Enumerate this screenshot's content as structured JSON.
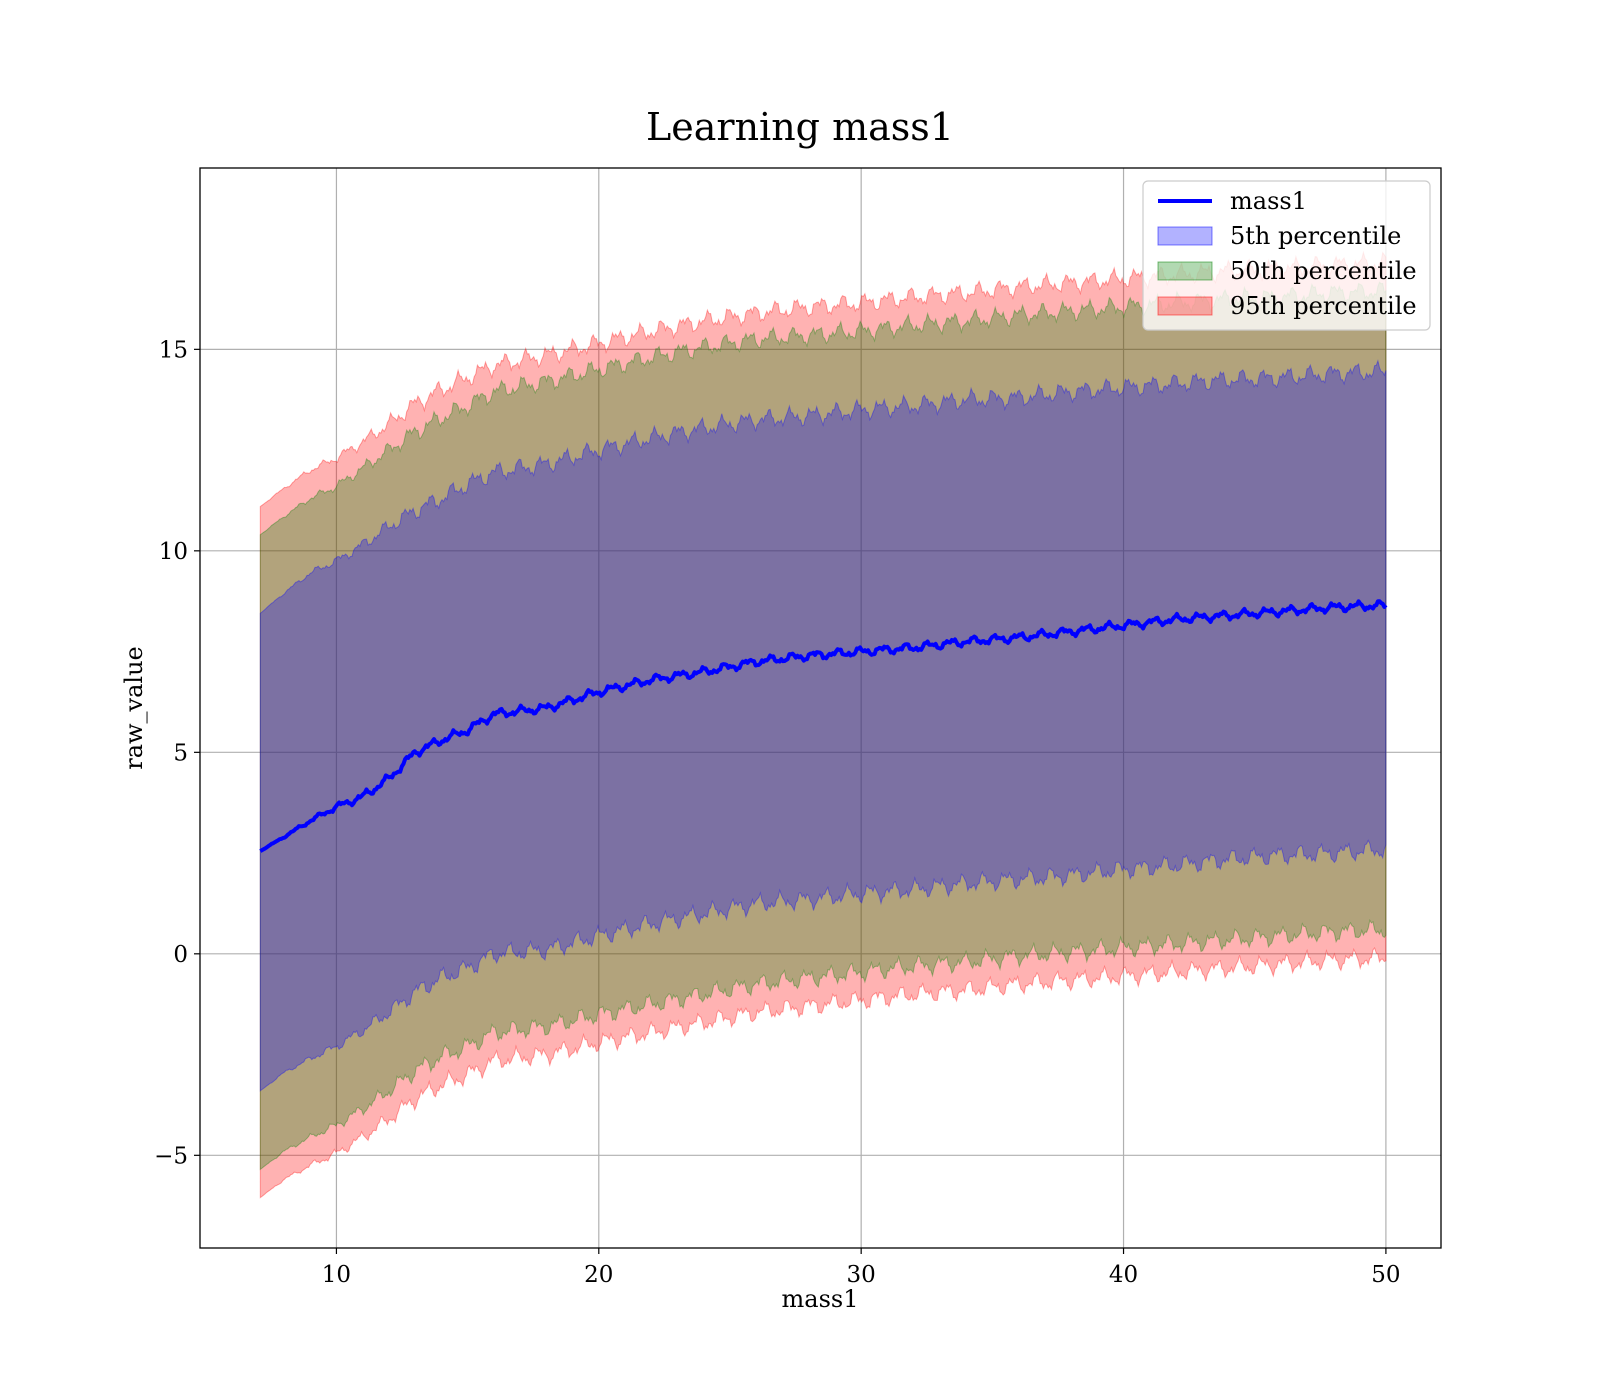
{
  "chart_data": {
    "type": "area",
    "title": "Learning mass1",
    "xlabel": "mass1",
    "ylabel": "raw_value",
    "xlim": [
      4.8,
      52.1
    ],
    "ylim": [
      -7.3,
      19.5
    ],
    "x_ticks": [
      10,
      20,
      30,
      40,
      50
    ],
    "x_tick_labels": [
      "10",
      "20",
      "30",
      "40",
      "50"
    ],
    "y_ticks": [
      -5,
      0,
      5,
      10,
      15
    ],
    "y_tick_labels": [
      "−5",
      "0",
      "5",
      "10",
      "15"
    ],
    "grid": true,
    "legend_position": "top-right",
    "x": [
      7.1,
      8,
      9,
      10,
      11,
      12,
      13,
      14,
      15,
      16,
      18,
      20,
      22,
      24,
      26,
      28,
      30,
      32,
      34,
      36,
      38,
      40,
      42,
      44,
      46,
      48,
      50
    ],
    "series": [
      {
        "name": "mass1",
        "kind": "line",
        "color": "#0000ff",
        "values": [
          2.55,
          2.9,
          3.3,
          3.65,
          3.9,
          4.35,
          5.0,
          5.3,
          5.55,
          5.95,
          6.1,
          6.5,
          6.8,
          7.0,
          7.25,
          7.4,
          7.5,
          7.6,
          7.75,
          7.85,
          8.0,
          8.15,
          8.3,
          8.4,
          8.5,
          8.6,
          8.65
        ]
      },
      {
        "name": "5th percentile",
        "kind": "band",
        "color": "#0000ff",
        "opacity": 0.3,
        "upper": [
          8.45,
          8.95,
          9.45,
          9.75,
          10.15,
          10.6,
          11.0,
          11.3,
          11.65,
          11.95,
          12.15,
          12.5,
          12.8,
          13.05,
          13.25,
          13.35,
          13.5,
          13.6,
          13.75,
          13.8,
          13.95,
          14.05,
          14.15,
          14.25,
          14.3,
          14.4,
          14.45
        ],
        "lower": [
          -3.4,
          -2.95,
          -2.6,
          -2.3,
          -1.9,
          -1.45,
          -0.95,
          -0.6,
          -0.35,
          0.0,
          0.1,
          0.45,
          0.75,
          1.0,
          1.25,
          1.35,
          1.5,
          1.6,
          1.75,
          1.85,
          1.95,
          2.1,
          2.2,
          2.35,
          2.45,
          2.5,
          2.6
        ]
      },
      {
        "name": "50th percentile",
        "kind": "band",
        "color": "#008000",
        "opacity": 0.3,
        "upper": [
          10.4,
          10.85,
          11.3,
          11.6,
          12.05,
          12.5,
          12.95,
          13.3,
          13.6,
          13.95,
          14.2,
          14.5,
          14.8,
          15.05,
          15.25,
          15.35,
          15.45,
          15.6,
          15.7,
          15.85,
          15.95,
          16.05,
          16.15,
          16.25,
          16.3,
          16.4,
          16.45
        ],
        "lower": [
          -5.35,
          -4.9,
          -4.55,
          -4.25,
          -3.85,
          -3.4,
          -2.9,
          -2.55,
          -2.3,
          -1.95,
          -1.8,
          -1.5,
          -1.25,
          -1.0,
          -0.75,
          -0.6,
          -0.45,
          -0.3,
          -0.2,
          -0.05,
          0.05,
          0.15,
          0.25,
          0.35,
          0.45,
          0.55,
          0.6
        ]
      },
      {
        "name": "95th percentile",
        "kind": "band",
        "color": "#ff0000",
        "opacity": 0.3,
        "upper": [
          11.1,
          11.55,
          12.0,
          12.3,
          12.7,
          13.15,
          13.65,
          14.0,
          14.3,
          14.6,
          14.85,
          15.15,
          15.45,
          15.7,
          15.9,
          16.05,
          16.15,
          16.3,
          16.4,
          16.55,
          16.65,
          16.75,
          16.85,
          16.95,
          17.0,
          17.1,
          17.15
        ],
        "lower": [
          -6.05,
          -5.6,
          -5.25,
          -4.95,
          -4.55,
          -4.1,
          -3.6,
          -3.25,
          -3.0,
          -2.65,
          -2.5,
          -2.2,
          -1.95,
          -1.7,
          -1.45,
          -1.3,
          -1.15,
          -1.0,
          -0.9,
          -0.75,
          -0.65,
          -0.55,
          -0.45,
          -0.35,
          -0.25,
          -0.15,
          -0.1
        ]
      }
    ]
  }
}
